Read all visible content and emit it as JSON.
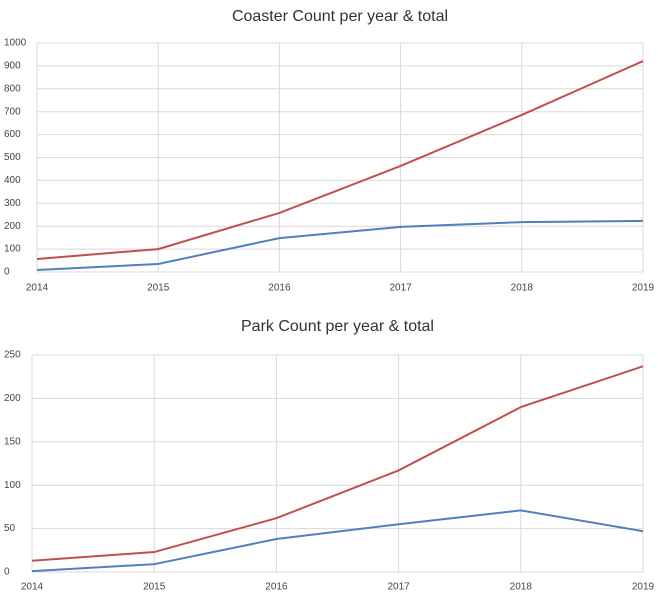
{
  "chart_data": [
    {
      "type": "line",
      "title": "Coaster Count per year & total",
      "x": [
        2014,
        2015,
        2016,
        2017,
        2018,
        2019
      ],
      "xlim": [
        2014,
        2019
      ],
      "xticks": [
        2014,
        2015,
        2016,
        2017,
        2018,
        2019
      ],
      "ylim": [
        0,
        1000
      ],
      "yticks": [
        0,
        100,
        200,
        300,
        400,
        500,
        600,
        700,
        800,
        900,
        1000
      ],
      "grid": true,
      "series": [
        {
          "color": "#c0504d",
          "values": [
            57,
            100,
            258,
            463,
            686,
            921
          ]
        },
        {
          "color": "#4f81bd",
          "values": [
            9,
            35,
            148,
            197,
            218,
            223
          ]
        }
      ]
    },
    {
      "type": "line",
      "title": "Park Count per year & total",
      "x": [
        2014,
        2015,
        2016,
        2017,
        2018,
        2019
      ],
      "xlim": [
        2014,
        2019
      ],
      "xticks": [
        2014,
        2015,
        2016,
        2017,
        2018,
        2019
      ],
      "ylim": [
        0,
        250
      ],
      "yticks": [
        0,
        50,
        100,
        150,
        200,
        250
      ],
      "grid": true,
      "series": [
        {
          "color": "#c0504d",
          "values": [
            13,
            23,
            62,
            117,
            190,
            237
          ]
        },
        {
          "color": "#4f81bd",
          "values": [
            1,
            9,
            38,
            55,
            71,
            47
          ]
        }
      ]
    }
  ]
}
